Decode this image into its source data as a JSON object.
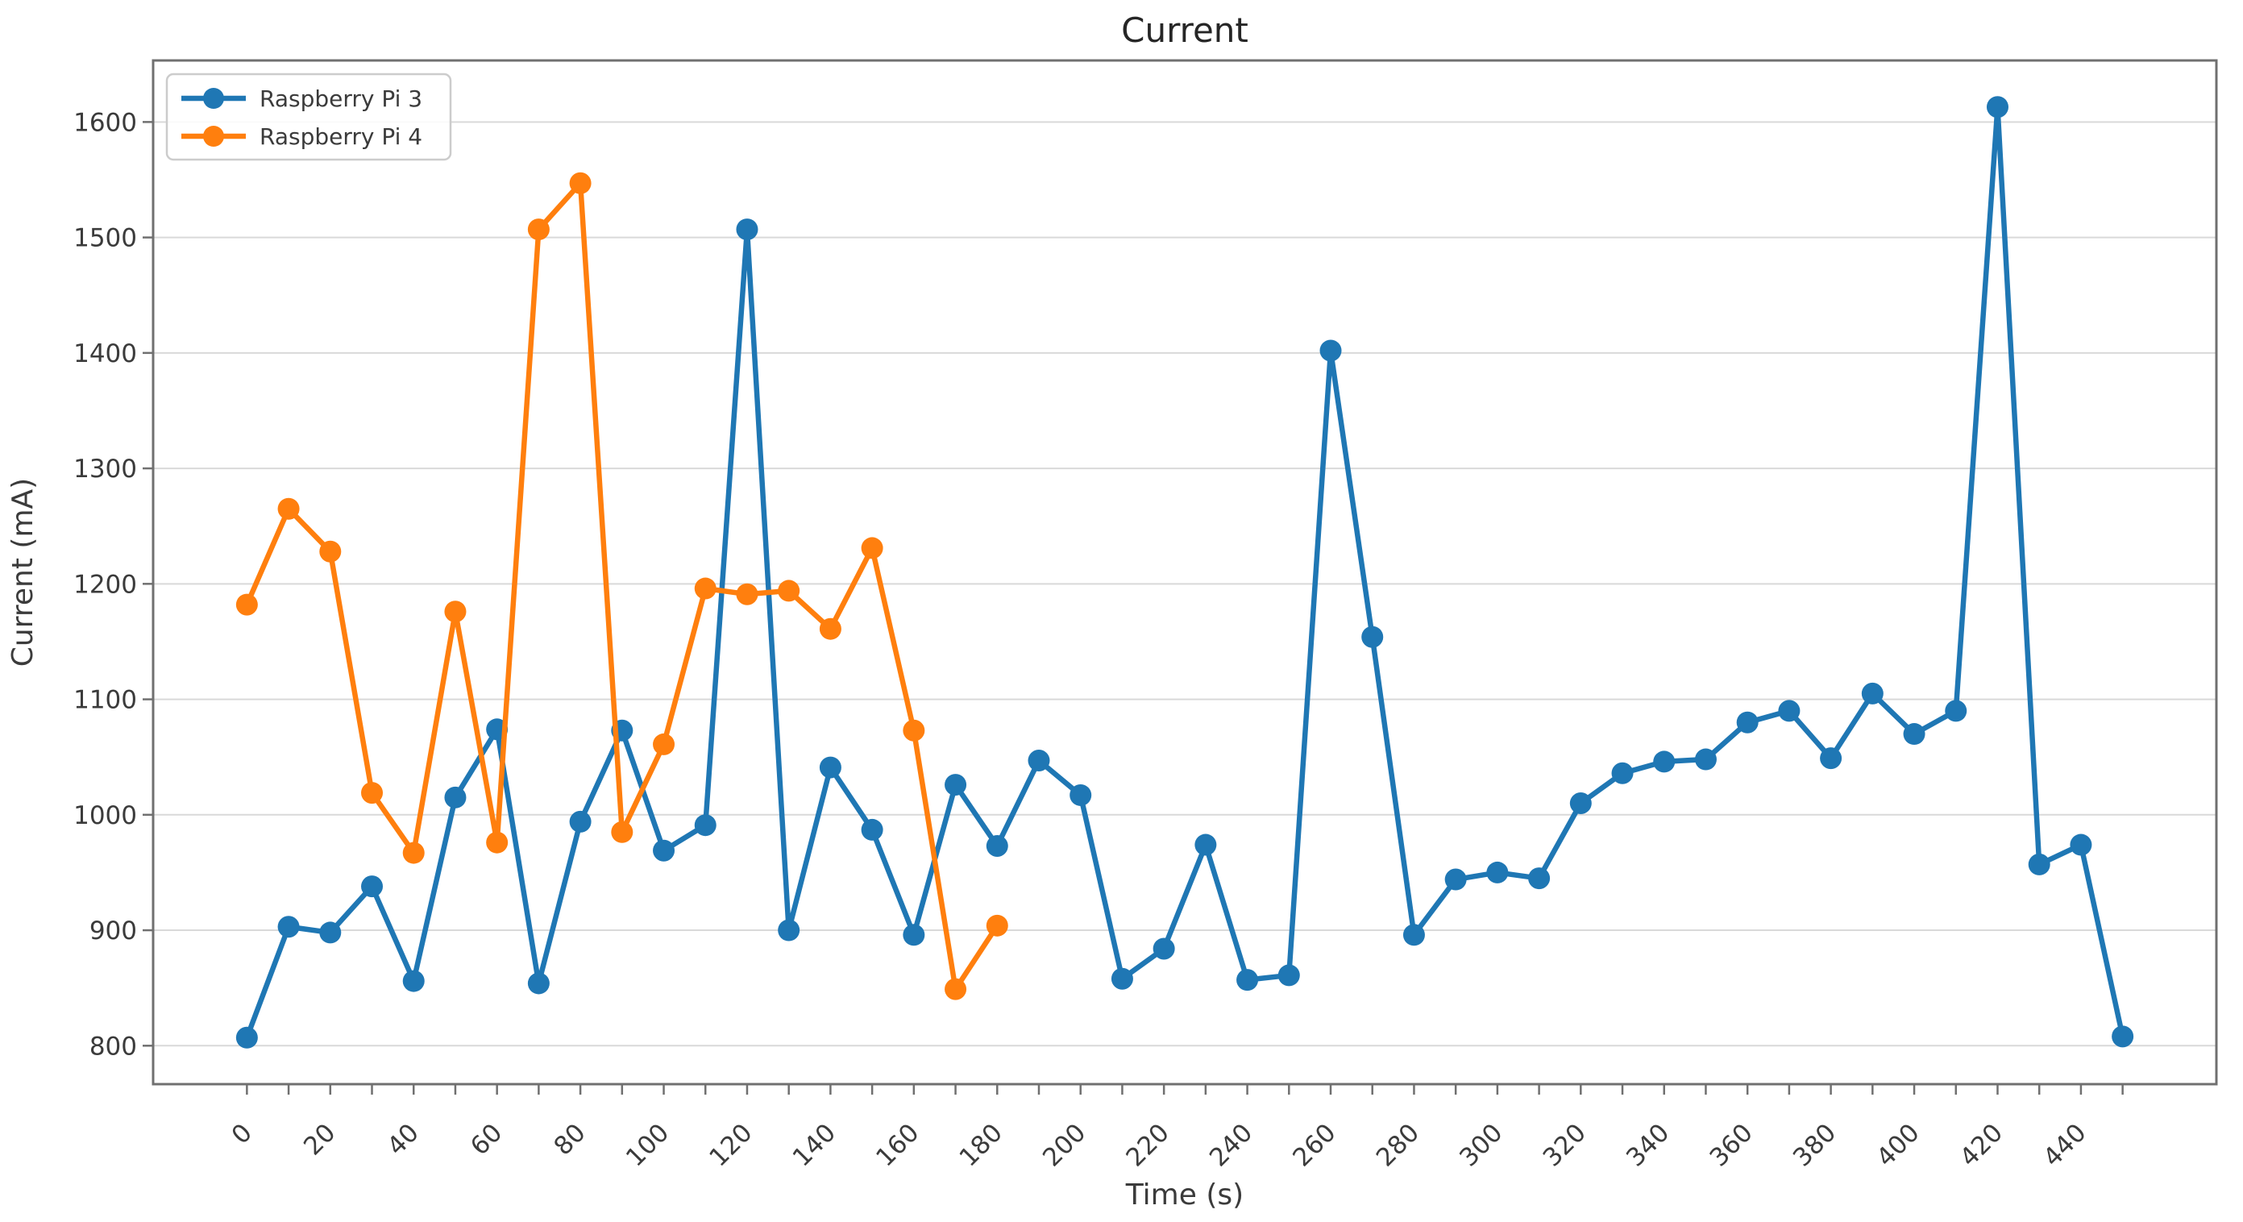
{
  "figure": {
    "title": "Current",
    "xlabel": "Time (s)",
    "ylabel": "Current (mA)"
  },
  "legend": {
    "items": [
      {
        "label": "Raspberry Pi 3",
        "color": "#1f77b4"
      },
      {
        "label": "Raspberry Pi 4",
        "color": "#ff7f0e"
      }
    ]
  },
  "chart_data": {
    "type": "line",
    "title": "Current",
    "xlabel": "Time (s)",
    "ylabel": "Current (mA)",
    "grid": "horizontal",
    "legend_position": "upper-left",
    "xlim": [
      -22.5,
      472.5
    ],
    "ylim": [
      766.7,
      1653.3
    ],
    "yticks": [
      800,
      900,
      1000,
      1100,
      1200,
      1300,
      1400,
      1500,
      1600
    ],
    "xtick_labels": [
      0,
      20,
      40,
      60,
      80,
      100,
      120,
      140,
      160,
      180,
      200,
      220,
      240,
      260,
      280,
      300,
      320,
      340,
      360,
      380,
      400,
      420,
      440
    ],
    "xtick_marks": {
      "start": 0,
      "end": 450,
      "step": 10
    },
    "series": [
      {
        "name": "Raspberry Pi 3",
        "color": "#1f77b4",
        "marker": "circle",
        "x": [
          0,
          10,
          20,
          30,
          40,
          50,
          60,
          70,
          80,
          90,
          100,
          110,
          120,
          130,
          140,
          150,
          160,
          170,
          180,
          190,
          200,
          210,
          220,
          230,
          240,
          250,
          260,
          270,
          280,
          290,
          300,
          310,
          320,
          330,
          340,
          350,
          360,
          370,
          380,
          390,
          400,
          410,
          420,
          430,
          440,
          450
        ],
        "values": [
          807,
          903,
          898,
          938,
          856,
          1015,
          1074,
          854,
          994,
          1073,
          969,
          991,
          1507,
          900,
          1041,
          987,
          896,
          1026,
          973,
          1047,
          1017,
          858,
          884,
          974,
          857,
          861,
          1402,
          1154,
          896,
          944,
          950,
          945,
          1010,
          1036,
          1046,
          1048,
          1080,
          1090,
          1049,
          1105,
          1070,
          1090,
          1613,
          957,
          974,
          808
        ]
      },
      {
        "name": "Raspberry Pi 4",
        "color": "#ff7f0e",
        "marker": "circle",
        "x": [
          0,
          10,
          20,
          30,
          40,
          50,
          60,
          70,
          80,
          90,
          100,
          110,
          120,
          130,
          140,
          150,
          160,
          170,
          180
        ],
        "values": [
          1182,
          1265,
          1228,
          1019,
          967,
          1176,
          976,
          1507,
          1547,
          985,
          1061,
          1196,
          1191,
          1194,
          1161,
          1231,
          1073,
          849,
          904
        ]
      }
    ],
    "style": {
      "grid_color": "#d9d9d9",
      "spine_color": "#707070",
      "tick_color": "#707070",
      "text_color": "#3b3b3b"
    }
  }
}
